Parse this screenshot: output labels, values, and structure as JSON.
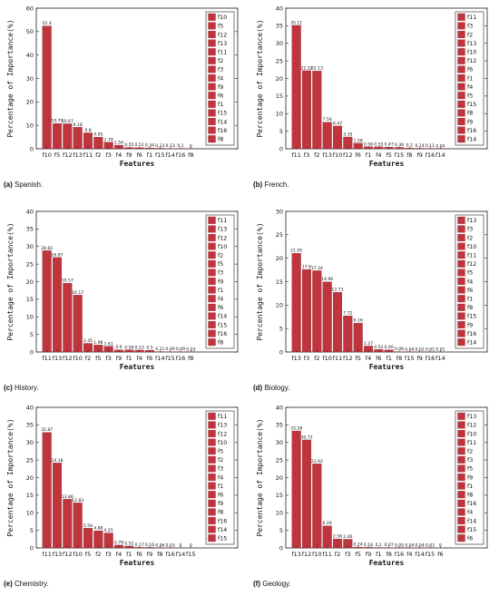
{
  "bar_color": "#c0343e",
  "chart_data": [
    {
      "type": "bar",
      "caption_letter": "(a)",
      "caption_text": "Spanish.",
      "xlabel": "Features",
      "ylabel": "Percentage of Importance(%)",
      "ylim": [
        0,
        60
      ],
      "yticks": [
        0,
        10,
        20,
        30,
        40,
        50,
        60
      ],
      "categories": [
        "f10",
        "f5",
        "f12",
        "f13",
        "f11",
        "f2",
        "f3",
        "f4",
        "f9",
        "f6",
        "f1",
        "f15",
        "f14",
        "f16",
        "f8"
      ],
      "values": [
        52.4,
        10.79,
        10.67,
        9.18,
        6.8,
        4.95,
        2.78,
        1.54,
        0.55,
        0.51,
        0.34,
        0.23,
        0.13,
        0.1,
        0
      ],
      "value_labels": [
        "52.4",
        "10.79",
        "10.67",
        "9.18",
        "6.8",
        "4.95",
        "2.78",
        "1.54",
        "0.55",
        "0.51",
        "0.34",
        "0.23",
        "0.13",
        "0.1",
        "0"
      ],
      "legend": [
        "f10",
        "f5",
        "f12",
        "f13",
        "f11",
        "f2",
        "f3",
        "f4",
        "f9",
        "f6",
        "f1",
        "f15",
        "f14",
        "f16",
        "f8"
      ]
    },
    {
      "type": "bar",
      "caption_letter": "(b)",
      "caption_text": "French.",
      "xlabel": "Features",
      "ylabel": "Percentage of Importance(%)",
      "ylim": [
        0,
        40
      ],
      "yticks": [
        0,
        5,
        10,
        15,
        20,
        25,
        30,
        35,
        40
      ],
      "categories": [
        "f11",
        "f3",
        "f2",
        "f13",
        "f10",
        "f12",
        "f6",
        "f1",
        "f4",
        "f5",
        "f15",
        "f8",
        "f9",
        "f16",
        "f14"
      ],
      "values": [
        35.11,
        22.22,
        22.13,
        7.56,
        6.47,
        3.35,
        1.58,
        0.56,
        0.55,
        0.47,
        0.39,
        0.2,
        0.14,
        0.11,
        0.04
      ],
      "value_labels": [
        "35.11",
        "22.22",
        "22.13",
        "7.56",
        "6.47",
        "3.35",
        "1.58",
        "0.56",
        "0.55",
        "0.47",
        "0.39",
        "0.2",
        "0.14",
        "0.11",
        "0.04"
      ],
      "legend": [
        "f11",
        "f3",
        "f2",
        "f13",
        "f10",
        "f12",
        "f6",
        "f1",
        "f4",
        "f5",
        "f15",
        "f8",
        "f9",
        "f16",
        "f14"
      ]
    },
    {
      "type": "bar",
      "caption_letter": "(c)",
      "caption_text": "History.",
      "xlabel": "Features",
      "ylabel": "Percentage of Importance(%)",
      "ylim": [
        0,
        40
      ],
      "yticks": [
        0,
        5,
        10,
        15,
        20,
        25,
        30,
        35,
        40
      ],
      "categories": [
        "f11",
        "f13",
        "f12",
        "f10",
        "f2",
        "f5",
        "f3",
        "f9",
        "f1",
        "f4",
        "f6",
        "f14",
        "f15",
        "f16",
        "f8"
      ],
      "values": [
        28.82,
        26.87,
        19.57,
        16.17,
        2.45,
        1.98,
        1.61,
        0.6,
        0.58,
        0.53,
        0.5,
        0.11,
        0.09,
        0.09,
        0.03
      ],
      "value_labels": [
        "28.82",
        "26.87",
        "19.57",
        "16.17",
        "2.45",
        "1.98",
        "1.61",
        "0.6",
        "0.58",
        "0.53",
        "0.5",
        "0.11",
        "0.09",
        "0.09",
        "0.03"
      ],
      "legend": [
        "f11",
        "f13",
        "f12",
        "f10",
        "f2",
        "f5",
        "f3",
        "f9",
        "f1",
        "f4",
        "f6",
        "f14",
        "f15",
        "f16",
        "f8"
      ]
    },
    {
      "type": "bar",
      "caption_letter": "(d)",
      "caption_text": "Biology.",
      "xlabel": "Features",
      "ylabel": "Percentage of Importance(%)",
      "ylim": [
        0,
        30
      ],
      "yticks": [
        0,
        5,
        10,
        15,
        20,
        25,
        30
      ],
      "categories": [
        "f13",
        "f3",
        "f2",
        "f10",
        "f11",
        "f12",
        "f5",
        "f4",
        "f6",
        "f1",
        "f8",
        "f15",
        "f9",
        "f16",
        "f14"
      ],
      "values": [
        21.05,
        17.6,
        17.34,
        14.96,
        12.73,
        7.72,
        6.16,
        1.27,
        0.52,
        0.46,
        0.06,
        0.04,
        0.02,
        0.01,
        0.01
      ],
      "value_labels": [
        "21.05",
        "17.6",
        "17.34",
        "14.96",
        "12.73",
        "7.72",
        "6.16",
        "1.27",
        "0.52",
        "0.46",
        "0.06",
        "0.04",
        "0.02",
        "0.01",
        "0.01"
      ],
      "legend": [
        "f13",
        "f3",
        "f2",
        "f10",
        "f11",
        "f12",
        "f5",
        "f4",
        "f6",
        "f1",
        "f8",
        "f15",
        "f9",
        "f16",
        "f14"
      ]
    },
    {
      "type": "bar",
      "caption_letter": "(e)",
      "caption_text": "Chemistry.",
      "xlabel": "Features",
      "ylabel": "Percentage of Importance(%)",
      "ylim": [
        0,
        40
      ],
      "yticks": [
        0,
        5,
        10,
        15,
        20,
        25,
        30,
        35,
        40
      ],
      "categories": [
        "f11",
        "f13",
        "f12",
        "f10",
        "f5",
        "f2",
        "f3",
        "f4",
        "f1",
        "f6",
        "f9",
        "f8",
        "f16",
        "f14",
        "f15"
      ],
      "values": [
        32.87,
        24.18,
        13.86,
        12.83,
        5.59,
        4.88,
        4.25,
        0.79,
        0.52,
        0.17,
        0.16,
        0.06,
        0.03,
        0,
        0
      ],
      "value_labels": [
        "32.87",
        "24.18",
        "13.86",
        "12.83",
        "5.59",
        "4.88",
        "4.25",
        "0.79",
        "0.52",
        "0.17",
        "0.16",
        "0.06",
        "0.03",
        "0",
        "0"
      ],
      "legend": [
        "f11",
        "f13",
        "f12",
        "f10",
        "f5",
        "f2",
        "f3",
        "f4",
        "f1",
        "f6",
        "f9",
        "f8",
        "f16",
        "f14",
        "f15"
      ]
    },
    {
      "type": "bar",
      "caption_letter": "(f)",
      "caption_text": "Geology.",
      "xlabel": "Features",
      "ylabel": "Percentage of Importance(%)",
      "ylim": [
        0,
        40
      ],
      "yticks": [
        0,
        5,
        10,
        15,
        20,
        25,
        30,
        35,
        40
      ],
      "categories": [
        "f13",
        "f12",
        "f10",
        "f11",
        "f2",
        "f3",
        "f5",
        "f9",
        "f1",
        "f8",
        "f16",
        "f4",
        "f14",
        "f15",
        "f6"
      ],
      "values": [
        33.28,
        30.73,
        23.92,
        6.26,
        2.56,
        2.46,
        0.24,
        0.18,
        0.1,
        0.07,
        0.05,
        0.04,
        0.04,
        0.03,
        0
      ],
      "value_labels": [
        "33.28",
        "30.73",
        "23.92",
        "6.26",
        "2.56",
        "2.46",
        "0.24",
        "0.18",
        "0.1",
        "0.07",
        "0.05",
        "0.04",
        "0.04",
        "0.03",
        "0"
      ],
      "legend": [
        "f13",
        "f12",
        "f10",
        "f11",
        "f2",
        "f3",
        "f5",
        "f9",
        "f1",
        "f8",
        "f16",
        "f4",
        "f14",
        "f15",
        "f6"
      ]
    }
  ]
}
